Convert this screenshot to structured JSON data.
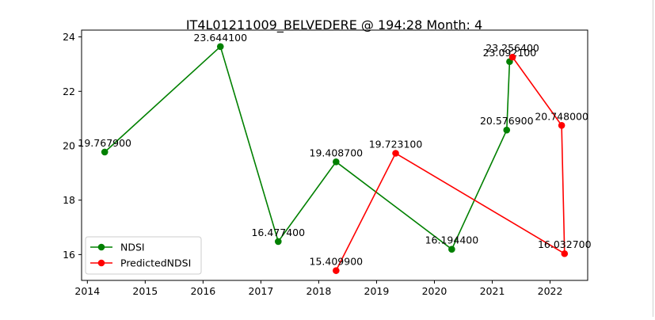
{
  "chart_data": {
    "type": "line",
    "title": "IT4L01211009_BELVEDERE @ 194:28 Month: 4",
    "xlabel": "",
    "ylabel": "",
    "xlim": [
      2013.9,
      2022.65
    ],
    "ylim": [
      15.05,
      24.25
    ],
    "x_ticks": [
      2014,
      2015,
      2016,
      2017,
      2018,
      2019,
      2020,
      2021,
      2022
    ],
    "y_ticks": [
      16,
      18,
      20,
      22,
      24
    ],
    "grid": false,
    "legend_position": "lower-left",
    "series": [
      {
        "name": "NDSI",
        "color": "#008000",
        "points": [
          {
            "x": 2014.3,
            "y": 19.7679,
            "label": "19.767900"
          },
          {
            "x": 2016.3,
            "y": 23.6441,
            "label": "23.644100"
          },
          {
            "x": 2017.3,
            "y": 16.4774,
            "label": "16.477400"
          },
          {
            "x": 2018.3,
            "y": 19.4087,
            "label": "19.408700"
          },
          {
            "x": 2020.3,
            "y": 16.1944,
            "label": "16.194400"
          },
          {
            "x": 2021.25,
            "y": 20.5769,
            "label": "20.576900"
          },
          {
            "x": 2021.3,
            "y": 23.0921,
            "label": "23.092100"
          }
        ]
      },
      {
        "name": "PredictedNDSI",
        "color": "#ff0000",
        "points": [
          {
            "x": 2018.3,
            "y": 15.4099,
            "label": "15.409900"
          },
          {
            "x": 2019.33,
            "y": 19.7231,
            "label": "19.723100"
          },
          {
            "x": 2022.25,
            "y": 16.0327,
            "label": "16.032700"
          },
          {
            "x": 2022.2,
            "y": 20.748,
            "label": "20.748000"
          },
          {
            "x": 2021.35,
            "y": 23.2564,
            "label": "23.256400"
          }
        ]
      }
    ]
  }
}
